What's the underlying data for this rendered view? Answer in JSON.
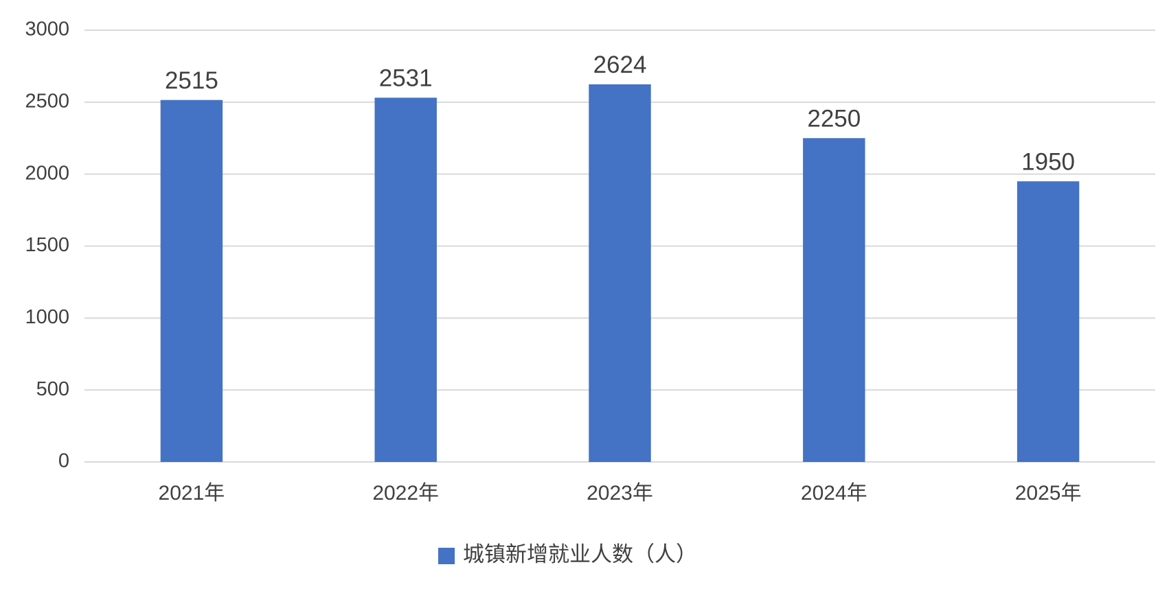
{
  "chart_data": {
    "type": "bar",
    "categories": [
      "2021年",
      "2022年",
      "2023年",
      "2024年",
      "2025年"
    ],
    "series": [
      {
        "name": "城镇新增就业人数（人）",
        "color": "#4472c4",
        "values": [
          2515,
          2531,
          2624,
          2250,
          1950
        ]
      }
    ],
    "ylim": [
      0,
      3000
    ],
    "yticks": [
      0,
      500,
      1000,
      1500,
      2000,
      2500,
      3000
    ],
    "grid": true,
    "legend": "bottom"
  }
}
